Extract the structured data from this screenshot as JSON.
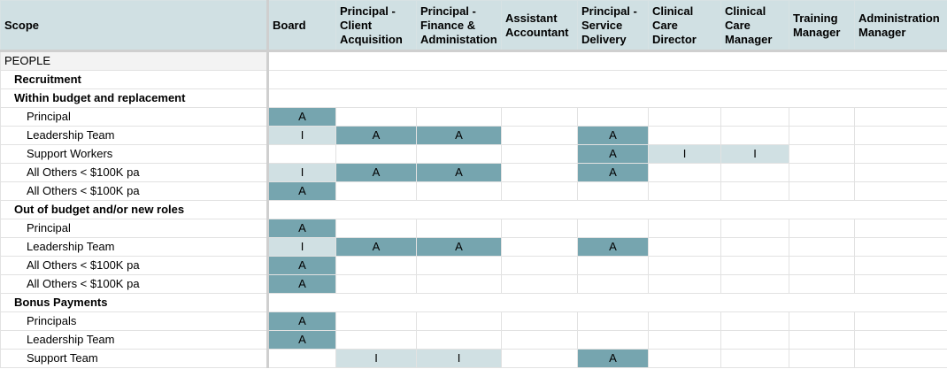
{
  "headers": [
    "Scope",
    "Board",
    "Principal - Client Acquisition",
    "Principal - Finance & Administation",
    "Assistant Accountant",
    "Principal - Service Delivery",
    "Clinical Care Director",
    "Clinical Care Manager",
    "Training Manager",
    "Administration Manager"
  ],
  "rows": [
    {
      "label": "PEOPLE",
      "level": 0,
      "cells": null
    },
    {
      "label": "Recruitment",
      "level": 1,
      "cells": null
    },
    {
      "label": "Within budget and replacement",
      "level": 1,
      "cells": null
    },
    {
      "label": "Principal",
      "level": 2,
      "cells": [
        "A",
        "",
        "",
        "",
        "",
        "",
        "",
        "",
        ""
      ]
    },
    {
      "label": "Leadership Team",
      "level": 2,
      "cells": [
        "I",
        "A",
        "A",
        "",
        "A",
        "",
        "",
        "",
        ""
      ]
    },
    {
      "label": "Support Workers",
      "level": 2,
      "cells": [
        "",
        "",
        "",
        "",
        "A",
        "I",
        "I",
        "",
        ""
      ]
    },
    {
      "label": "All Others < $100K pa",
      "level": 2,
      "cells": [
        "I",
        "A",
        "A",
        "",
        "A",
        "",
        "",
        "",
        ""
      ]
    },
    {
      "label": "All Others < $100K pa",
      "level": 2,
      "cells": [
        "A",
        "",
        "",
        "",
        "",
        "",
        "",
        "",
        ""
      ]
    },
    {
      "label": "Out of budget and/or new roles",
      "level": 1,
      "cells": null
    },
    {
      "label": "Principal",
      "level": 2,
      "cells": [
        "A",
        "",
        "",
        "",
        "",
        "",
        "",
        "",
        ""
      ]
    },
    {
      "label": "Leadership Team",
      "level": 2,
      "cells": [
        "I",
        "A",
        "A",
        "",
        "A",
        "",
        "",
        "",
        ""
      ]
    },
    {
      "label": "All Others < $100K pa",
      "level": 2,
      "cells": [
        "A",
        "",
        "",
        "",
        "",
        "",
        "",
        "",
        ""
      ]
    },
    {
      "label": "All Others < $100K pa",
      "level": 2,
      "cells": [
        "A",
        "",
        "",
        "",
        "",
        "",
        "",
        "",
        ""
      ]
    },
    {
      "label": "Bonus Payments",
      "level": 1,
      "cells": null
    },
    {
      "label": "Principals",
      "level": 2,
      "cells": [
        "A",
        "",
        "",
        "",
        "",
        "",
        "",
        "",
        ""
      ]
    },
    {
      "label": "Leadership Team",
      "level": 2,
      "cells": [
        "A",
        "",
        "",
        "",
        "",
        "",
        "",
        "",
        ""
      ]
    },
    {
      "label": "Support Team",
      "level": 2,
      "cells": [
        "",
        "I",
        "I",
        "",
        "A",
        "",
        "",
        "",
        ""
      ]
    }
  ],
  "colors": {
    "header_bg": "#d0e0e3",
    "accountable": "#76a5af",
    "informed": "#d0e0e3",
    "section_bg": "#f3f3f3"
  }
}
